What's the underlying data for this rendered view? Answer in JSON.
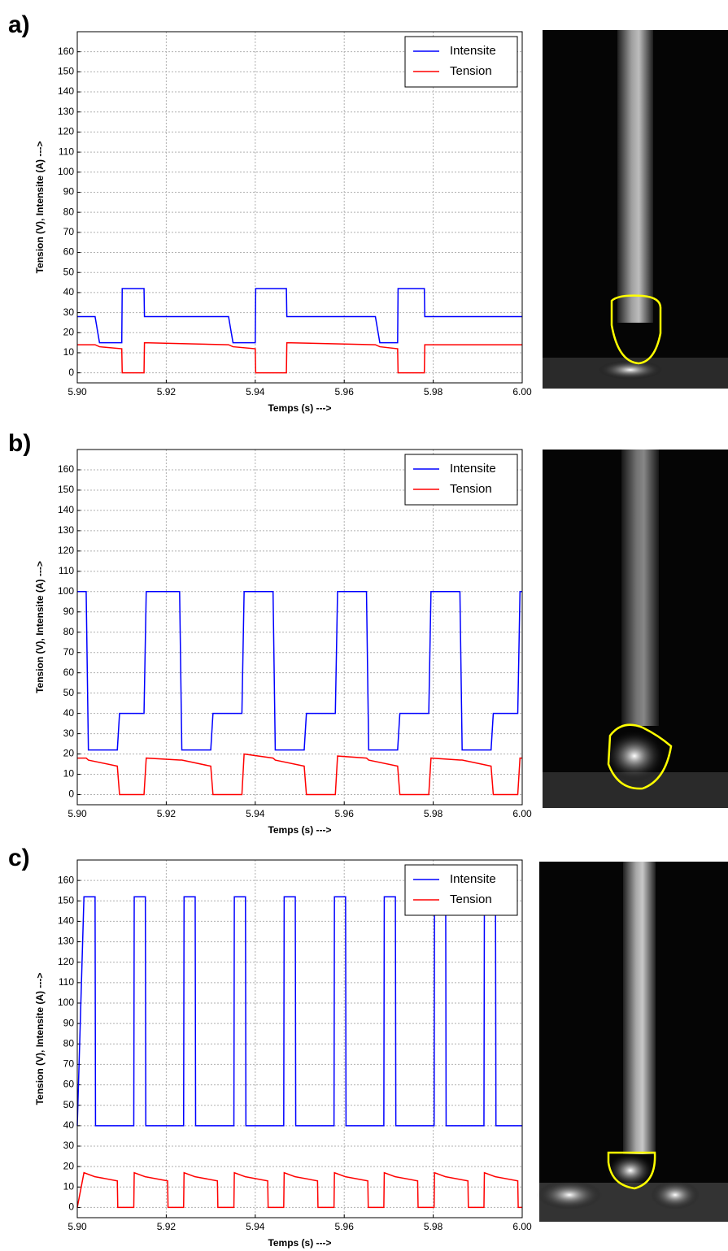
{
  "chart_data": [
    {
      "type": "line",
      "panel_label": "a)",
      "xlabel": "Temps (s) --->",
      "ylabel": "Tension (V), Intensite (A) --->",
      "xlim": [
        5.9,
        6.0
      ],
      "ylim": [
        -5,
        170
      ],
      "xticks": [
        {
          "value": 5.9,
          "label": "5.90"
        },
        5.92,
        5.94,
        5.96,
        5.98,
        {
          "value": 6.0,
          "label": "6.00"
        }
      ],
      "yticks": [
        0,
        10,
        20,
        30,
        40,
        50,
        60,
        70,
        80,
        90,
        100,
        110,
        120,
        130,
        140,
        150,
        160
      ],
      "grid": true,
      "legend": "upper right",
      "x": [
        5.9,
        5.904,
        5.905,
        5.91,
        5.9101,
        5.915,
        5.9151,
        5.934,
        5.935,
        5.94,
        5.9401,
        5.947,
        5.9471,
        5.967,
        5.968,
        5.972,
        5.9721,
        5.978,
        5.9781,
        6.0
      ],
      "series": [
        {
          "name": "Intensite",
          "color": "#0000ff",
          "values": [
            28,
            28,
            15,
            15,
            42,
            42,
            28,
            28,
            15,
            15,
            42,
            42,
            28,
            28,
            15,
            15,
            42,
            42,
            28,
            28
          ]
        },
        {
          "name": "Tension",
          "color": "#ff0000",
          "values": [
            14,
            14,
            13,
            12,
            0,
            0,
            15,
            14,
            13,
            12,
            0,
            0,
            15,
            14,
            13,
            12,
            0,
            0,
            14,
            14
          ]
        }
      ]
    },
    {
      "type": "line",
      "panel_label": "b)",
      "xlabel": "Temps (s) --->",
      "ylabel": "Tension (V), Intensite (A) --->",
      "xlim": [
        5.9,
        6.0
      ],
      "ylim": [
        -5,
        170
      ],
      "xticks": [
        {
          "value": 5.9,
          "label": "5.90"
        },
        5.92,
        5.94,
        5.96,
        5.98,
        {
          "value": 6.0,
          "label": "6.00"
        }
      ],
      "yticks": [
        0,
        10,
        20,
        30,
        40,
        50,
        60,
        70,
        80,
        90,
        100,
        110,
        120,
        130,
        140,
        150,
        160
      ],
      "grid": true,
      "legend": "upper right",
      "x": [
        5.9,
        5.902,
        5.9025,
        5.909,
        5.9095,
        5.915,
        5.9155,
        5.923,
        5.9235,
        5.93,
        5.9305,
        5.937,
        5.9375,
        5.944,
        5.9445,
        5.951,
        5.9515,
        5.958,
        5.9585,
        5.965,
        5.9655,
        5.972,
        5.9725,
        5.979,
        5.9795,
        5.986,
        5.9865,
        5.993,
        5.9935,
        5.999,
        5.9995,
        6.0
      ],
      "series": [
        {
          "name": "Intensite",
          "color": "#0000ff",
          "values": [
            100,
            100,
            22,
            22,
            40,
            40,
            100,
            100,
            22,
            22,
            40,
            40,
            100,
            100,
            22,
            22,
            40,
            40,
            100,
            100,
            22,
            22,
            40,
            40,
            100,
            100,
            22,
            22,
            40,
            40,
            100,
            100
          ]
        },
        {
          "name": "Tension",
          "color": "#ff0000",
          "values": [
            18,
            18,
            17,
            14,
            0,
            0,
            18,
            17,
            17,
            14,
            0,
            0,
            20,
            18,
            17,
            14,
            0,
            0,
            19,
            18,
            17,
            14,
            0,
            0,
            18,
            17,
            17,
            14,
            0,
            0,
            18,
            18
          ]
        }
      ]
    },
    {
      "type": "line",
      "panel_label": "c)",
      "xlabel": "Temps (s) --->",
      "ylabel": "Tension (V), Intensite (A) --->",
      "xlim": [
        5.9,
        6.0
      ],
      "ylim": [
        -5,
        170
      ],
      "xticks": [
        {
          "value": 5.9,
          "label": "5.90"
        },
        5.92,
        5.94,
        5.96,
        5.98,
        {
          "value": 6.0,
          "label": "6.00"
        }
      ],
      "yticks": [
        0,
        10,
        20,
        30,
        40,
        50,
        60,
        70,
        80,
        90,
        100,
        110,
        120,
        130,
        140,
        150,
        160
      ],
      "grid": true,
      "legend": "upper right",
      "x": [
        5.9,
        5.9015,
        5.904,
        5.9041,
        5.909,
        5.9091,
        5.9127,
        5.9128,
        5.9153,
        5.9154,
        5.9203,
        5.9204,
        5.9239,
        5.924,
        5.9265,
        5.9266,
        5.9315,
        5.9316,
        5.9352,
        5.9353,
        5.9378,
        5.9379,
        5.9428,
        5.9429,
        5.9464,
        5.9465,
        5.949,
        5.9491,
        5.954,
        5.9541,
        5.9577,
        5.9578,
        5.9603,
        5.9604,
        5.9653,
        5.9654,
        5.9689,
        5.969,
        5.9715,
        5.9716,
        5.9765,
        5.9766,
        5.9802,
        5.9803,
        5.9828,
        5.9829,
        5.9878,
        5.9879,
        5.9914,
        5.9915,
        5.994,
        5.9941,
        5.999,
        5.9991,
        6.0
      ],
      "series": [
        {
          "name": "Intensite",
          "color": "#0000ff",
          "values": [
            40,
            152,
            152,
            40,
            40,
            40,
            40,
            152,
            152,
            40,
            40,
            40,
            40,
            152,
            152,
            40,
            40,
            40,
            40,
            152,
            152,
            40,
            40,
            40,
            40,
            152,
            152,
            40,
            40,
            40,
            40,
            152,
            152,
            40,
            40,
            40,
            40,
            152,
            152,
            40,
            40,
            40,
            40,
            152,
            152,
            40,
            40,
            40,
            40,
            152,
            152,
            40,
            40,
            40,
            40
          ]
        },
        {
          "name": "Tension",
          "color": "#ff0000",
          "values": [
            0,
            17,
            15,
            15,
            13,
            0,
            0,
            17,
            15,
            15,
            13,
            0,
            0,
            17,
            15,
            15,
            13,
            0,
            0,
            17,
            15,
            15,
            13,
            0,
            0,
            17,
            15,
            15,
            13,
            0,
            0,
            17,
            15,
            15,
            13,
            0,
            0,
            17,
            15,
            15,
            13,
            0,
            0,
            17,
            15,
            15,
            13,
            0,
            0,
            17,
            15,
            15,
            13,
            0,
            0
          ]
        }
      ]
    }
  ]
}
